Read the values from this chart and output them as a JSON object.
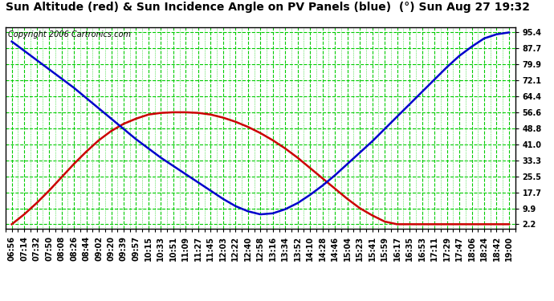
{
  "title": "Sun Altitude (red) & Sun Incidence Angle on PV Panels (blue)  (°) Sun Aug 27 19:32",
  "copyright_text": "Copyright 2006 Cartronics.com",
  "background_color": "#ffffff",
  "plot_bg_color": "#ffffff",
  "grid_major_color": "#00cc00",
  "grid_minor_color": "#00cc00",
  "red_line_color": "#cc0000",
  "blue_line_color": "#0000cc",
  "ytick_labels": [
    "2.2",
    "9.9",
    "17.7",
    "25.5",
    "33.3",
    "41.0",
    "48.8",
    "56.6",
    "64.4",
    "72.1",
    "79.9",
    "87.7",
    "95.4"
  ],
  "ytick_values": [
    2.2,
    9.9,
    17.7,
    25.5,
    33.3,
    41.0,
    48.8,
    56.6,
    64.4,
    72.1,
    79.9,
    87.7,
    95.4
  ],
  "x_labels": [
    "06:56",
    "07:14",
    "07:32",
    "07:50",
    "08:08",
    "08:26",
    "08:44",
    "09:02",
    "09:20",
    "09:39",
    "09:57",
    "10:15",
    "10:33",
    "10:51",
    "11:09",
    "11:27",
    "11:45",
    "12:03",
    "12:22",
    "12:40",
    "12:58",
    "13:16",
    "13:34",
    "13:52",
    "14:10",
    "14:28",
    "14:46",
    "15:04",
    "15:23",
    "15:41",
    "15:59",
    "16:17",
    "16:35",
    "16:53",
    "17:11",
    "17:29",
    "17:47",
    "18:06",
    "18:24",
    "18:42",
    "19:00"
  ],
  "red_data_y": [
    2.2,
    7.0,
    12.5,
    18.5,
    25.0,
    31.5,
    37.5,
    43.0,
    47.5,
    51.0,
    53.5,
    55.5,
    56.3,
    56.6,
    56.6,
    56.3,
    55.5,
    54.0,
    52.0,
    49.5,
    46.5,
    43.0,
    39.0,
    34.5,
    29.5,
    24.5,
    19.5,
    14.5,
    10.0,
    6.5,
    3.5,
    2.2,
    2.2,
    2.2,
    2.2,
    2.2,
    2.2,
    2.2,
    2.2,
    2.2,
    2.2
  ],
  "blue_data_y": [
    91.0,
    86.5,
    82.0,
    77.5,
    73.0,
    68.5,
    63.5,
    58.5,
    53.5,
    48.5,
    43.5,
    39.0,
    34.5,
    30.5,
    26.5,
    22.5,
    18.5,
    14.5,
    11.0,
    8.5,
    7.0,
    7.5,
    9.5,
    12.5,
    16.5,
    21.0,
    26.0,
    31.5,
    37.0,
    42.5,
    48.5,
    54.5,
    60.5,
    66.5,
    72.5,
    78.5,
    84.0,
    88.5,
    92.5,
    94.5,
    95.4
  ],
  "title_fontsize": 10,
  "copyright_fontsize": 7,
  "tick_fontsize": 7,
  "line_width": 1.8
}
